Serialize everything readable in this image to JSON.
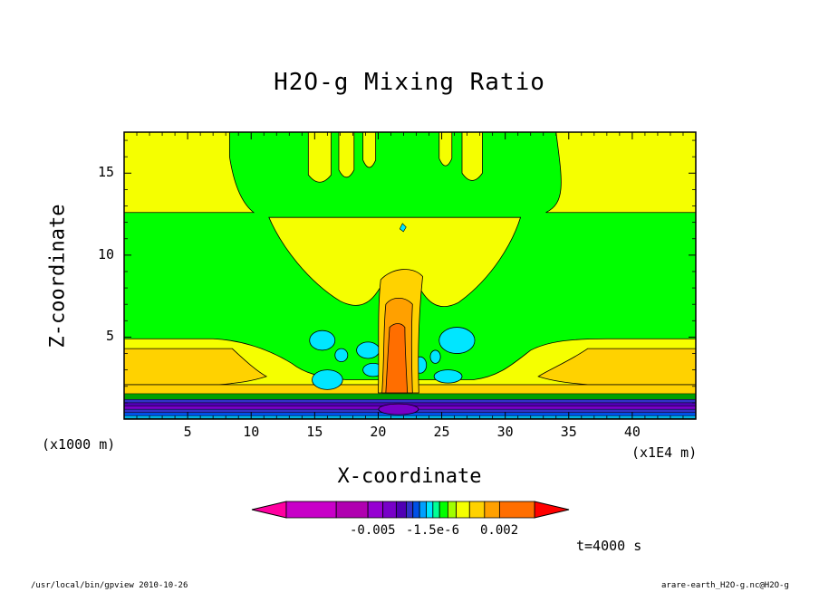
{
  "title": "H2O-g Mixing Ratio",
  "footer": {
    "left": "/usr/local/bin/gpview  2010-10-26",
    "right": "arare-earth_H2O-g.nc@H2O-g"
  },
  "time_label": "t=4000 s",
  "colorbar": {
    "labels": [
      "-0.005",
      "-1.5e-6",
      "0.002"
    ],
    "colors": [
      "#ff00a0",
      "#c800c8",
      "#b000b0",
      "#9600d2",
      "#7800c8",
      "#5000b4",
      "#3232c8",
      "#0050e6",
      "#00a0ff",
      "#00e6ff",
      "#00ff96",
      "#00ff00",
      "#a0ff00",
      "#f5ff00",
      "#ffd200",
      "#ffa000",
      "#ff6e00",
      "#ff0000"
    ]
  },
  "chart_data": {
    "type": "heatmap",
    "title": "H2O-g Mixing Ratio",
    "xlabel": "X-coordinate",
    "ylabel": "Z-coordinate",
    "x_unit_label": "(x1000 m)",
    "x_unit_label2": "(x1E4 m)",
    "xlim": [
      0,
      45
    ],
    "ylim": [
      0,
      17.5
    ],
    "x_ticks": [
      5,
      10,
      15,
      20,
      25,
      30,
      35,
      40
    ],
    "y_ticks": [
      5,
      10,
      15
    ],
    "colors": {
      "green": "#00ff00",
      "yellow": "#f5ff00",
      "orange_light": "#ffd200",
      "orange": "#ffa000",
      "orange_dark": "#ff6e00",
      "cyan": "#00e6ff",
      "blue": "#3232c8",
      "purple": "#7800c8"
    }
  }
}
